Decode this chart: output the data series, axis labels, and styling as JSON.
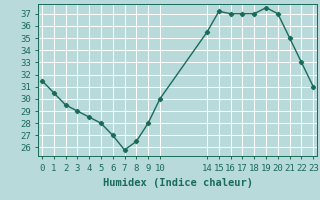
{
  "x": [
    0,
    1,
    2,
    3,
    4,
    5,
    6,
    7,
    8,
    9,
    10,
    14,
    15,
    16,
    17,
    18,
    19,
    20,
    21,
    22,
    23
  ],
  "y": [
    31.5,
    30.5,
    29.5,
    29.0,
    28.5,
    28.0,
    27.0,
    25.8,
    26.5,
    28.0,
    30.0,
    35.5,
    37.2,
    37.0,
    37.0,
    37.0,
    37.5,
    37.0,
    35.0,
    33.0,
    31.0
  ],
  "line_color": "#1a6b5a",
  "marker": "D",
  "marker_size": 2.2,
  "background_color": "#b8dada",
  "grid_color": "#ffffff",
  "xlabel": "Humidex (Indice chaleur)",
  "ylim": [
    25.3,
    37.8
  ],
  "yticks": [
    26,
    27,
    28,
    29,
    30,
    31,
    32,
    33,
    34,
    35,
    36,
    37
  ],
  "xtick_positions": [
    0,
    1,
    2,
    3,
    4,
    5,
    6,
    7,
    8,
    9,
    10,
    14,
    15,
    16,
    17,
    18,
    19,
    20,
    21,
    22,
    23
  ],
  "xtick_labels": [
    "0",
    "1",
    "2",
    "3",
    "4",
    "5",
    "6",
    "7",
    "8",
    "9",
    "10",
    "14",
    "15",
    "16",
    "17",
    "18",
    "19",
    "20",
    "21",
    "22",
    "23"
  ],
  "tick_label_fontsize": 6.5,
  "xlabel_fontsize": 7.5,
  "axis_color": "#1a6b5a",
  "linewidth": 1.0,
  "xlim": [
    -0.3,
    23.3
  ]
}
